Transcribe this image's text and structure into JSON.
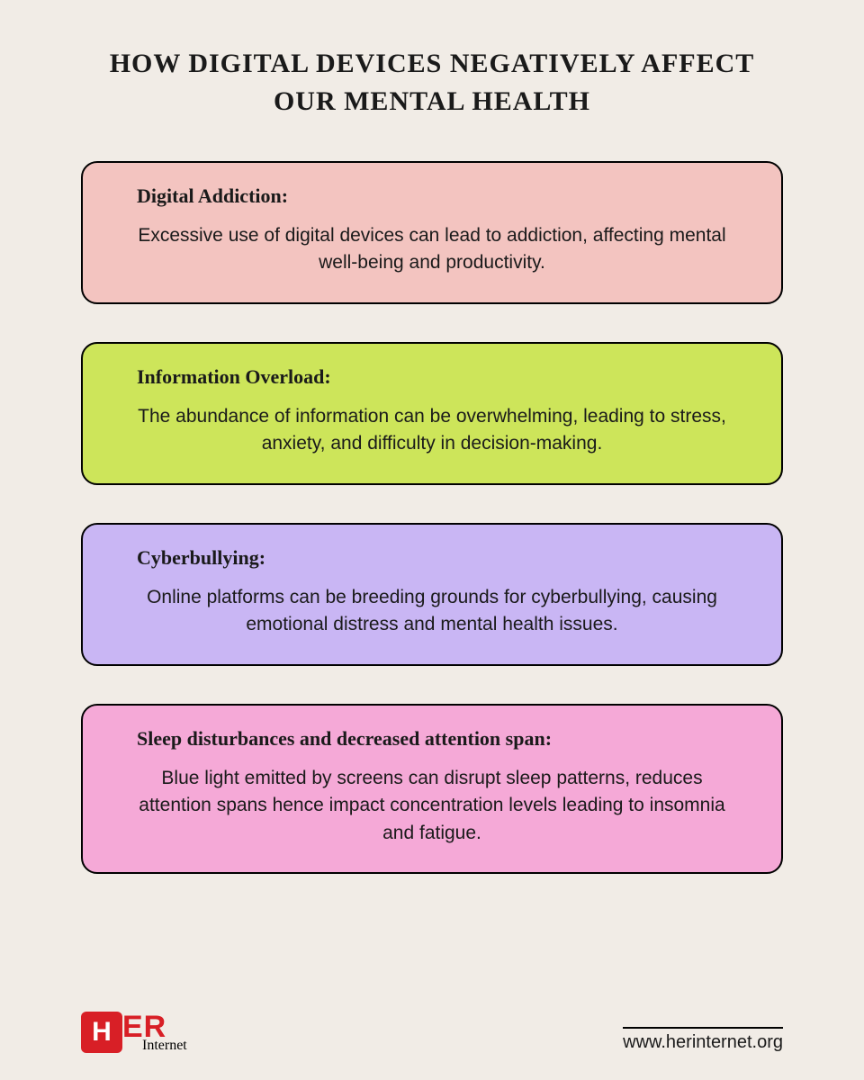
{
  "title": "HOW DIGITAL DEVICES NEGATIVELY AFFECT OUR MENTAL HEALTH",
  "cards": [
    {
      "heading": "Digital Addiction:",
      "body": "Excessive use of digital devices can lead to addiction, affecting mental well-being and productivity.",
      "bg": "#f3c4c0"
    },
    {
      "heading": "Information Overload:",
      "body": "The abundance of information can be overwhelming, leading to stress, anxiety, and difficulty in decision-making.",
      "bg": "#cde55a"
    },
    {
      "heading": "Cyberbullying:",
      "body": "Online platforms can be breeding grounds for cyberbullying, causing emotional distress and mental health issues.",
      "bg": "#c9b6f4"
    },
    {
      "heading": "Sleep disturbances and decreased attention span:",
      "body": "Blue light emitted by screens can disrupt sleep patterns, reduces attention spans hence impact concentration levels leading to insomnia and fatigue.",
      "bg": "#f5a9d7"
    }
  ],
  "logo": {
    "er": "ER",
    "sub": "Internet"
  },
  "website": "www.herinternet.org",
  "colors": {
    "page_bg": "#f1ece6",
    "text": "#1a1a1a",
    "border": "#000000",
    "brand": "#d81f26"
  }
}
